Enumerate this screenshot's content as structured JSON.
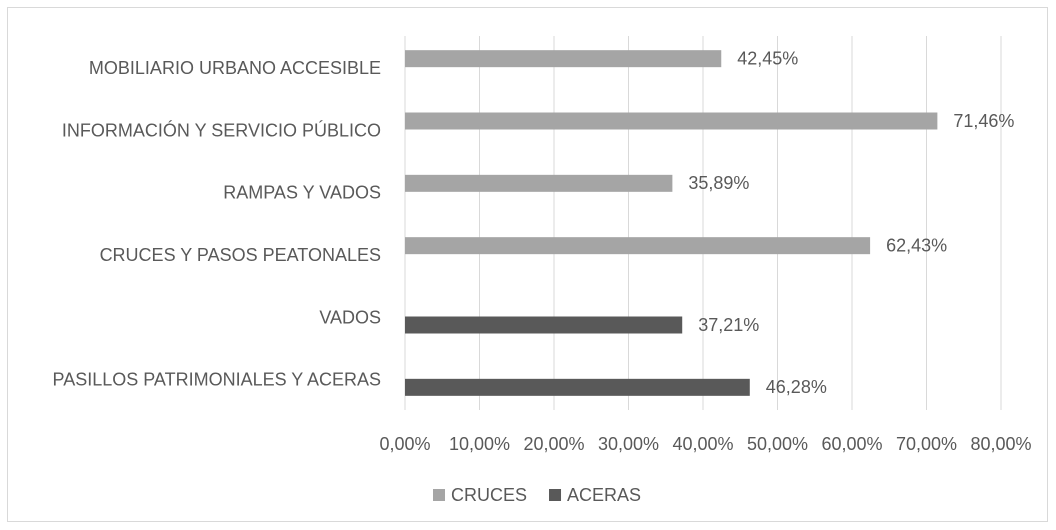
{
  "chart_data": {
    "type": "bar",
    "orientation": "horizontal",
    "categories": [
      "MOBILIARIO URBANO ACCESIBLE",
      "INFORMACIÓN Y SERVICIO PÚBLICO",
      "RAMPAS Y VADOS",
      "CRUCES Y PASOS PEATONALES",
      "VADOS",
      "PASILLOS PATRIMONIALES Y ACERAS"
    ],
    "series": [
      {
        "name": "CRUCES",
        "color": "#a5a5a5",
        "values": [
          42.45,
          71.46,
          35.89,
          62.43,
          null,
          null
        ],
        "value_labels": [
          "42,45%",
          "71,46%",
          "35,89%",
          "62,43%",
          null,
          null
        ]
      },
      {
        "name": "ACERAS",
        "color": "#595959",
        "values": [
          null,
          null,
          null,
          null,
          37.21,
          46.28
        ],
        "value_labels": [
          null,
          null,
          null,
          null,
          "37,21%",
          "46,28%"
        ]
      }
    ],
    "xlim": [
      0,
      80
    ],
    "xticks": [
      {
        "value": 0,
        "label": "0,00%"
      },
      {
        "value": 10,
        "label": "10,00%"
      },
      {
        "value": 20,
        "label": "20,00%"
      },
      {
        "value": 30,
        "label": "30,00%"
      },
      {
        "value": 40,
        "label": "40,00%"
      },
      {
        "value": 50,
        "label": "50,00%"
      },
      {
        "value": 60,
        "label": "60,00%"
      },
      {
        "value": 70,
        "label": "70,00%"
      },
      {
        "value": 80,
        "label": "80,00%"
      }
    ],
    "grid": true,
    "legend": "bottom"
  }
}
